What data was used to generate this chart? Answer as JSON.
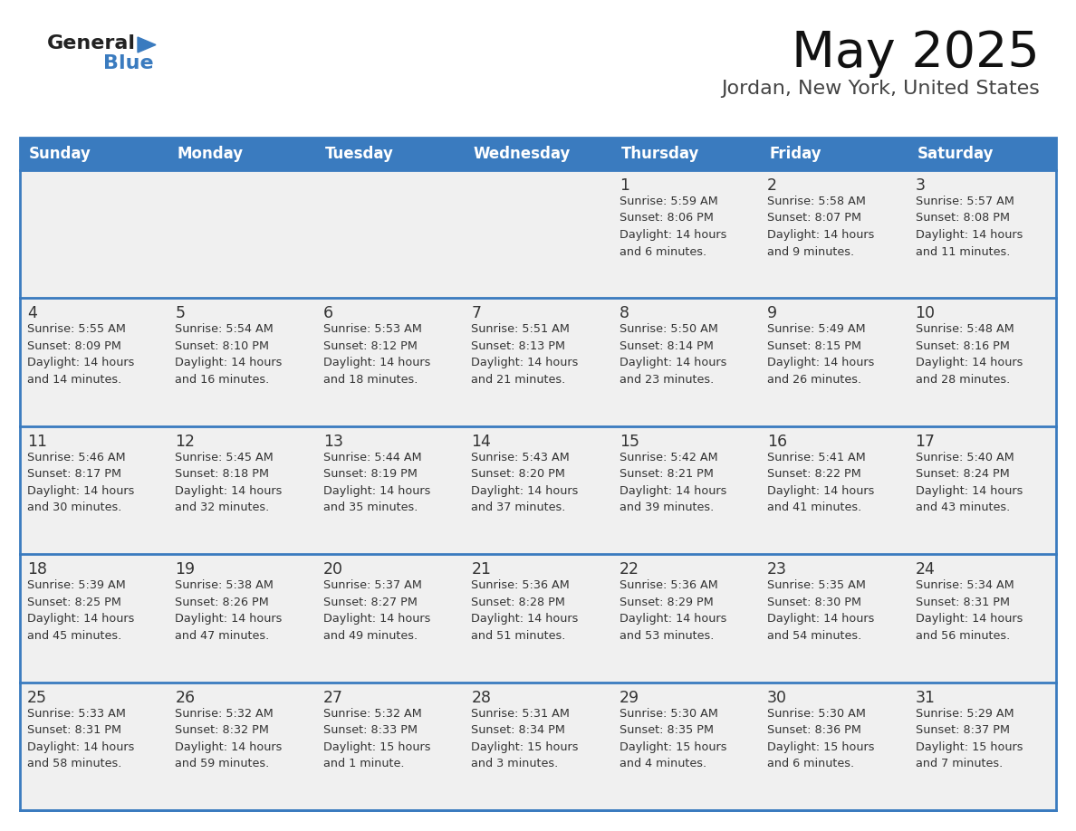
{
  "title": "May 2025",
  "subtitle": "Jordan, New York, United States",
  "header_bg": "#3a7bbf",
  "header_text": "#ffffff",
  "cell_bg": "#f0f0f0",
  "day_number_color": "#333333",
  "cell_text_color": "#333333",
  "border_color": "#3a7bbf",
  "days_of_week": [
    "Sunday",
    "Monday",
    "Tuesday",
    "Wednesday",
    "Thursday",
    "Friday",
    "Saturday"
  ],
  "calendar": [
    [
      null,
      null,
      null,
      null,
      {
        "day": 1,
        "sunrise": "5:59 AM",
        "sunset": "8:06 PM",
        "daylight": "14 hours\nand 6 minutes."
      },
      {
        "day": 2,
        "sunrise": "5:58 AM",
        "sunset": "8:07 PM",
        "daylight": "14 hours\nand 9 minutes."
      },
      {
        "day": 3,
        "sunrise": "5:57 AM",
        "sunset": "8:08 PM",
        "daylight": "14 hours\nand 11 minutes."
      }
    ],
    [
      {
        "day": 4,
        "sunrise": "5:55 AM",
        "sunset": "8:09 PM",
        "daylight": "14 hours\nand 14 minutes."
      },
      {
        "day": 5,
        "sunrise": "5:54 AM",
        "sunset": "8:10 PM",
        "daylight": "14 hours\nand 16 minutes."
      },
      {
        "day": 6,
        "sunrise": "5:53 AM",
        "sunset": "8:12 PM",
        "daylight": "14 hours\nand 18 minutes."
      },
      {
        "day": 7,
        "sunrise": "5:51 AM",
        "sunset": "8:13 PM",
        "daylight": "14 hours\nand 21 minutes."
      },
      {
        "day": 8,
        "sunrise": "5:50 AM",
        "sunset": "8:14 PM",
        "daylight": "14 hours\nand 23 minutes."
      },
      {
        "day": 9,
        "sunrise": "5:49 AM",
        "sunset": "8:15 PM",
        "daylight": "14 hours\nand 26 minutes."
      },
      {
        "day": 10,
        "sunrise": "5:48 AM",
        "sunset": "8:16 PM",
        "daylight": "14 hours\nand 28 minutes."
      }
    ],
    [
      {
        "day": 11,
        "sunrise": "5:46 AM",
        "sunset": "8:17 PM",
        "daylight": "14 hours\nand 30 minutes."
      },
      {
        "day": 12,
        "sunrise": "5:45 AM",
        "sunset": "8:18 PM",
        "daylight": "14 hours\nand 32 minutes."
      },
      {
        "day": 13,
        "sunrise": "5:44 AM",
        "sunset": "8:19 PM",
        "daylight": "14 hours\nand 35 minutes."
      },
      {
        "day": 14,
        "sunrise": "5:43 AM",
        "sunset": "8:20 PM",
        "daylight": "14 hours\nand 37 minutes."
      },
      {
        "day": 15,
        "sunrise": "5:42 AM",
        "sunset": "8:21 PM",
        "daylight": "14 hours\nand 39 minutes."
      },
      {
        "day": 16,
        "sunrise": "5:41 AM",
        "sunset": "8:22 PM",
        "daylight": "14 hours\nand 41 minutes."
      },
      {
        "day": 17,
        "sunrise": "5:40 AM",
        "sunset": "8:24 PM",
        "daylight": "14 hours\nand 43 minutes."
      }
    ],
    [
      {
        "day": 18,
        "sunrise": "5:39 AM",
        "sunset": "8:25 PM",
        "daylight": "14 hours\nand 45 minutes."
      },
      {
        "day": 19,
        "sunrise": "5:38 AM",
        "sunset": "8:26 PM",
        "daylight": "14 hours\nand 47 minutes."
      },
      {
        "day": 20,
        "sunrise": "5:37 AM",
        "sunset": "8:27 PM",
        "daylight": "14 hours\nand 49 minutes."
      },
      {
        "day": 21,
        "sunrise": "5:36 AM",
        "sunset": "8:28 PM",
        "daylight": "14 hours\nand 51 minutes."
      },
      {
        "day": 22,
        "sunrise": "5:36 AM",
        "sunset": "8:29 PM",
        "daylight": "14 hours\nand 53 minutes."
      },
      {
        "day": 23,
        "sunrise": "5:35 AM",
        "sunset": "8:30 PM",
        "daylight": "14 hours\nand 54 minutes."
      },
      {
        "day": 24,
        "sunrise": "5:34 AM",
        "sunset": "8:31 PM",
        "daylight": "14 hours\nand 56 minutes."
      }
    ],
    [
      {
        "day": 25,
        "sunrise": "5:33 AM",
        "sunset": "8:31 PM",
        "daylight": "14 hours\nand 58 minutes."
      },
      {
        "day": 26,
        "sunrise": "5:32 AM",
        "sunset": "8:32 PM",
        "daylight": "14 hours\nand 59 minutes."
      },
      {
        "day": 27,
        "sunrise": "5:32 AM",
        "sunset": "8:33 PM",
        "daylight": "15 hours\nand 1 minute."
      },
      {
        "day": 28,
        "sunrise": "5:31 AM",
        "sunset": "8:34 PM",
        "daylight": "15 hours\nand 3 minutes."
      },
      {
        "day": 29,
        "sunrise": "5:30 AM",
        "sunset": "8:35 PM",
        "daylight": "15 hours\nand 4 minutes."
      },
      {
        "day": 30,
        "sunrise": "5:30 AM",
        "sunset": "8:36 PM",
        "daylight": "15 hours\nand 6 minutes."
      },
      {
        "day": 31,
        "sunrise": "5:29 AM",
        "sunset": "8:37 PM",
        "daylight": "15 hours\nand 7 minutes."
      }
    ]
  ],
  "logo_general_color": "#222222",
  "logo_blue_color": "#3a7bbf",
  "logo_triangle_color": "#3a7bbf"
}
